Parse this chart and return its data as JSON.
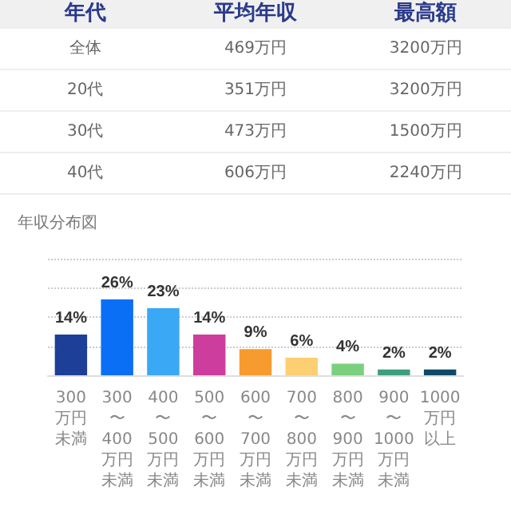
{
  "chart_data": [
    {
      "type": "other",
      "annotations": [
        "年代",
        "平均年収",
        "最高額",
        "全体",
        "469万円",
        "3200万円",
        "20代",
        "351万円",
        "3200万円",
        "30代",
        "473万円",
        "1500万円",
        "40代",
        "606万円",
        "2240万円"
      ]
    },
    {
      "type": "bar",
      "title": "年収分布図",
      "categories": [
        "300万円未満",
        "300〜400万円未満",
        "400〜500万円未満",
        "500〜600万円未満",
        "600〜700万円未満",
        "700〜800万円未満",
        "800〜900万円未満",
        "900〜1000万円未満",
        "1000万円以上"
      ],
      "ylim": [
        0,
        40
      ],
      "yticks": [
        {
          "value": 0,
          "label": null
        },
        {
          "value": 10,
          "label": null
        },
        {
          "value": 20,
          "label": null
        },
        {
          "value": 30,
          "label": null
        },
        {
          "value": 40,
          "label": null
        }
      ],
      "values": [
        14,
        26,
        23,
        14,
        9,
        6,
        4,
        2,
        2
      ],
      "colors": [
        "#1e3f98",
        "#0a6ff5",
        "#3aa8f5",
        "#cc3d9e",
        "#f79b2e",
        "#fccf72",
        "#7bd07e",
        "#3f9e7c",
        "#0e4a66"
      ],
      "value_labels": [
        "14%",
        "26%",
        "23%",
        "14%",
        "9%",
        "6%",
        "4%",
        "2%",
        "2%"
      ],
      "grid": "y"
    }
  ]
}
